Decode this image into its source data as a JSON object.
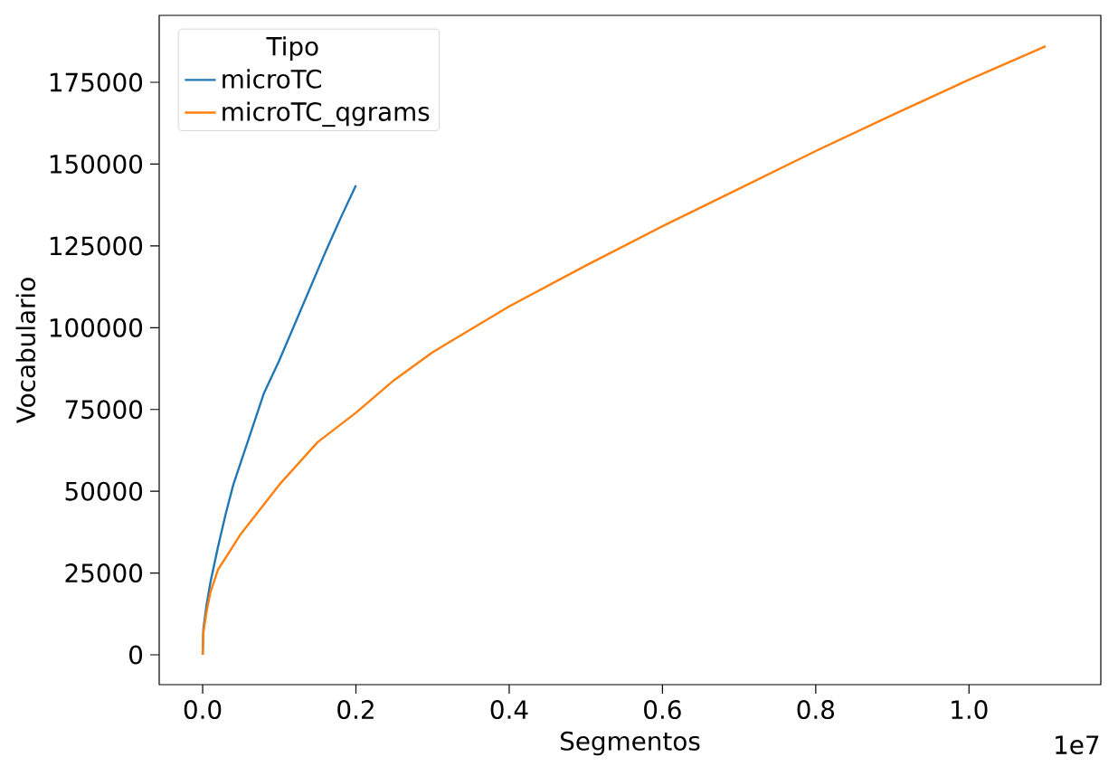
{
  "chart_data": {
    "type": "line",
    "xlabel": "Segmentos",
    "ylabel": "Vocabulario",
    "legend_title": "Tipo",
    "legend": "top left",
    "annotations": [
      "1e7"
    ],
    "xlim": [
      -0.0567,
      1.172
    ],
    "ylim": [
      -9120,
      195460
    ],
    "xticks": [
      {
        "value": 0,
        "label": "0.0"
      },
      0.2,
      0.4,
      0.6,
      0.8,
      {
        "value": 1,
        "label": "1.0"
      }
    ],
    "yticks": [
      0,
      25000,
      50000,
      75000,
      100000,
      125000,
      150000,
      175000
    ],
    "series": [
      {
        "name": "microTC",
        "color": "#1f77b4",
        "x": [
          0,
          0.001,
          0.005,
          0.01,
          0.02,
          0.03,
          0.04,
          0.05,
          0.06,
          0.07,
          0.08,
          0.1,
          0.12,
          0.14,
          0.16,
          0.18,
          0.2
        ],
        "values": [
          0,
          8000,
          15000,
          22000,
          33000,
          43000,
          52000,
          59000,
          66000,
          73000,
          80000,
          90000,
          101000,
          112000,
          123000,
          133500,
          143500
        ]
      },
      {
        "name": "microTC_qgrams",
        "color": "#ff7f0e",
        "x": [
          0,
          0.001,
          0.005,
          0.01,
          0.02,
          0.05,
          0.1,
          0.15,
          0.2,
          0.25,
          0.3,
          0.4,
          0.5,
          0.6,
          0.7,
          0.8,
          0.9,
          1.0,
          1.1
        ],
        "values": [
          0,
          7000,
          13000,
          19000,
          26000,
          37000,
          52000,
          65000,
          74000,
          84000,
          92500,
          106500,
          119000,
          131000,
          142500,
          154000,
          165000,
          175800,
          186000
        ]
      }
    ]
  }
}
